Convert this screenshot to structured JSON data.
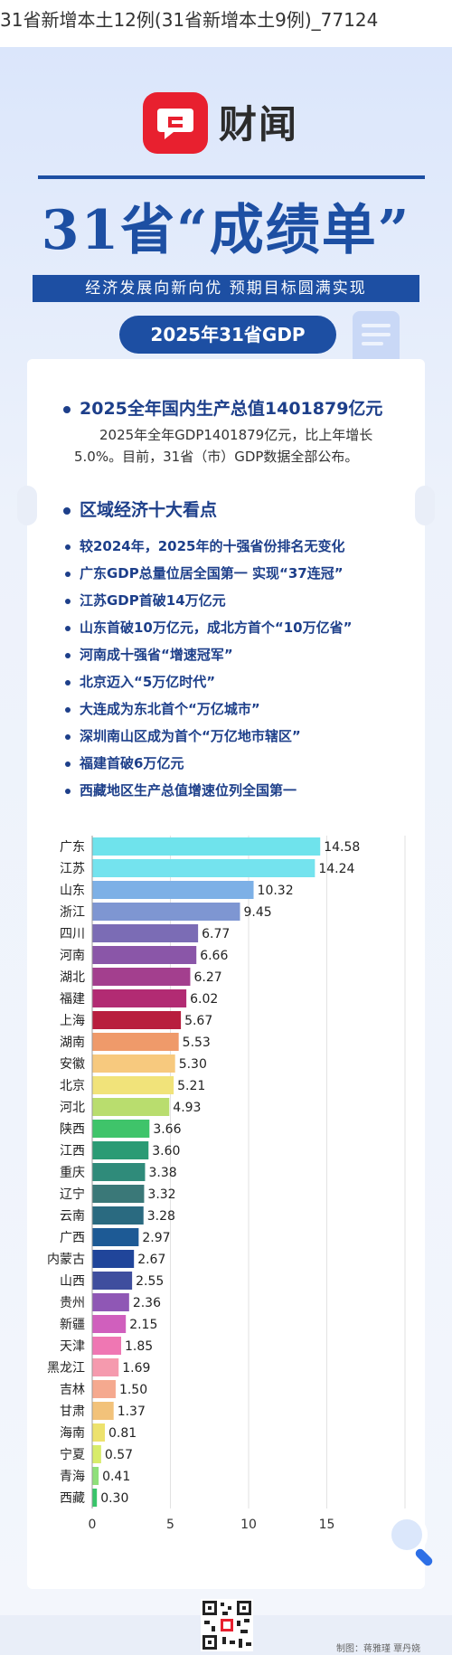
{
  "page_title": "31省新增本土12例(31省新增本土9例)_77124",
  "brand": "财闻",
  "main_title": "31省“成绩单”",
  "subtitle": "经济发展向新向优 预期目标圆满实现",
  "pill_label": "2025年31省GDP",
  "section1": {
    "heading": "2025全年国内生产总值1401879亿元",
    "paragraph": "2025年全年GDP1401879亿元，比上年增长5.0%。目前，31省（市）GDP数据全部公布。"
  },
  "section2": {
    "heading": "区域经济十大看点",
    "items": [
      "较2024年，2025年的十强省份排名无变化",
      "广东GDP总量位居全国第一 实现“37连冠”",
      "江苏GDP首破14万亿元",
      "山东首破10万亿元，成北方首个“10万亿省”",
      "河南成十强省“增速冠军”",
      "北京迈入“5万亿时代”",
      "大连成为东北首个“万亿城市”",
      "深圳南山区成为首个“万亿地市辖区”",
      "福建首破6万亿元",
      "西藏地区生产总值增速位列全国第一"
    ]
  },
  "credit": "制图：蒋雅瑾 覃丹娆",
  "chart_data": {
    "type": "bar",
    "orientation": "horizontal",
    "title": "",
    "xlabel": "",
    "ylabel": "",
    "xlim": [
      0,
      20
    ],
    "xticks": [
      0,
      5,
      10,
      15,
      20
    ],
    "grid": true,
    "categories": [
      "广东",
      "江苏",
      "山东",
      "浙江",
      "四川",
      "河南",
      "湖北",
      "福建",
      "上海",
      "湖南",
      "安徽",
      "北京",
      "河北",
      "陕西",
      "江西",
      "重庆",
      "辽宁",
      "云南",
      "广西",
      "内蒙古",
      "山西",
      "贵州",
      "新疆",
      "天津",
      "黑龙江",
      "吉林",
      "甘肃",
      "海南",
      "宁夏",
      "青海",
      "西藏"
    ],
    "values": [
      14.58,
      14.24,
      10.32,
      9.45,
      6.77,
      6.66,
      6.27,
      6.02,
      5.67,
      5.53,
      5.3,
      5.21,
      4.93,
      3.66,
      3.6,
      3.38,
      3.32,
      3.28,
      2.97,
      2.67,
      2.55,
      2.36,
      2.15,
      1.85,
      1.69,
      1.5,
      1.37,
      0.81,
      0.57,
      0.41,
      0.3
    ],
    "value_labels": [
      "14.58",
      "14.24",
      "10.32",
      "9.45",
      "6.77",
      "6.66",
      "6.27",
      "6.02",
      "5.67",
      "5.53",
      "5.30",
      "5.21",
      "4.93",
      "3.66",
      "3.60",
      "3.38",
      "3.32",
      "3.28",
      "2.97",
      "2.67",
      "2.55",
      "2.36",
      "2.15",
      "1.85",
      "1.69",
      "1.50",
      "1.37",
      "0.81",
      "0.57",
      "0.41",
      "0.30"
    ],
    "colors": [
      "#6fe3ec",
      "#74e3ee",
      "#7db0e6",
      "#7e96d2",
      "#7b6cb5",
      "#8a56a8",
      "#a33f8e",
      "#b22b73",
      "#b81e3e",
      "#ef9a6a",
      "#f7c97e",
      "#f1e37a",
      "#b9dd6e",
      "#3fc46a",
      "#2a9b74",
      "#2f8b7a",
      "#3a7878",
      "#2a6a80",
      "#1d5a95",
      "#20459a",
      "#3f4e9e",
      "#8f57b5",
      "#d05fbd",
      "#ef77b3",
      "#f59aae",
      "#f5a98f",
      "#f2c27a",
      "#ede26d",
      "#d8ec6a",
      "#8fe07a",
      "#38c56a"
    ]
  }
}
